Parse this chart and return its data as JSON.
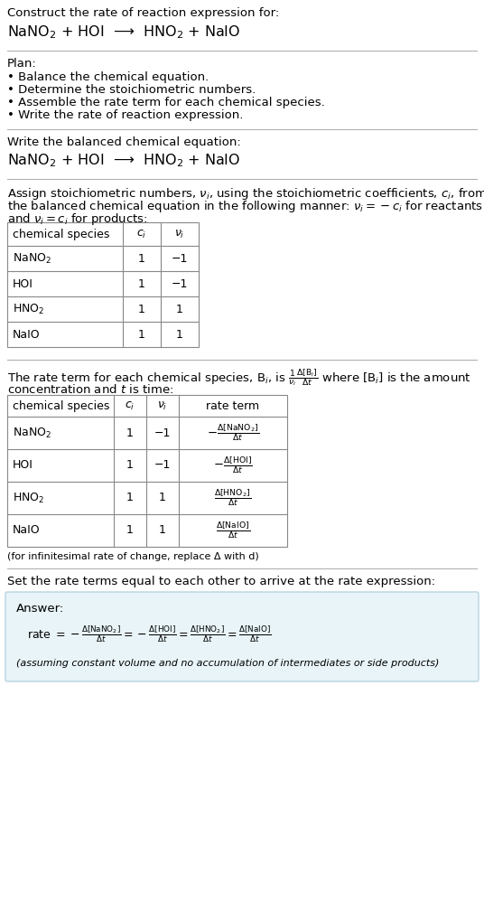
{
  "title_line1": "Construct the rate of reaction expression for:",
  "title_line2": "NaNO$_2$ + HOI  ⟶  HNO$_2$ + NaIO",
  "plan_header": "Plan:",
  "plan_items": [
    "• Balance the chemical equation.",
    "• Determine the stoichiometric numbers.",
    "• Assemble the rate term for each chemical species.",
    "• Write the rate of reaction expression."
  ],
  "section2_header": "Write the balanced chemical equation:",
  "section2_eq": "NaNO$_2$ + HOI  ⟶  HNO$_2$ + NaIO",
  "section3_header_part1": "Assign stoichiometric numbers, $\\nu_i$, using the stoichiometric coefficients, $c_i$, from",
  "section3_header_part2": "the balanced chemical equation in the following manner: $\\nu_i = -c_i$ for reactants",
  "section3_header_part3": "and $\\nu_i = c_i$ for products:",
  "table1_headers": [
    "chemical species",
    "$c_i$",
    "$\\nu_i$"
  ],
  "table1_rows": [
    [
      "NaNO$_2$",
      "1",
      "−1"
    ],
    [
      "HOI",
      "1",
      "−1"
    ],
    [
      "HNO$_2$",
      "1",
      "1"
    ],
    [
      "NaIO",
      "1",
      "1"
    ]
  ],
  "section4_header_part1": "The rate term for each chemical species, B$_i$, is $\\frac{1}{\\nu_i}\\frac{\\Delta[\\mathrm{B}_i]}{\\Delta t}$ where [B$_i$] is the amount",
  "section4_header_part2": "concentration and $t$ is time:",
  "table2_headers": [
    "chemical species",
    "$c_i$",
    "$\\nu_i$",
    "rate term"
  ],
  "table2_rows": [
    [
      "NaNO$_2$",
      "1",
      "−1",
      "$-\\frac{\\Delta[\\mathrm{NaNO_2}]}{\\Delta t}$"
    ],
    [
      "HOI",
      "1",
      "−1",
      "$-\\frac{\\Delta[\\mathrm{HOI}]}{\\Delta t}$"
    ],
    [
      "HNO$_2$",
      "1",
      "1",
      "$\\frac{\\Delta[\\mathrm{HNO_2}]}{\\Delta t}$"
    ],
    [
      "NaIO",
      "1",
      "1",
      "$\\frac{\\Delta[\\mathrm{NaIO}]}{\\Delta t}$"
    ]
  ],
  "footnote": "(for infinitesimal rate of change, replace Δ with d)",
  "section5_header": "Set the rate terms equal to each other to arrive at the rate expression:",
  "answer_label": "Answer:",
  "answer_note": "(assuming constant volume and no accumulation of intermediates or side products)",
  "bg_color": "#ffffff",
  "answer_box_color": "#e8f4f8",
  "answer_box_border": "#b8d4e0",
  "text_color": "#000000",
  "separator_color": "#aaaaaa",
  "table_border_color": "#888888"
}
